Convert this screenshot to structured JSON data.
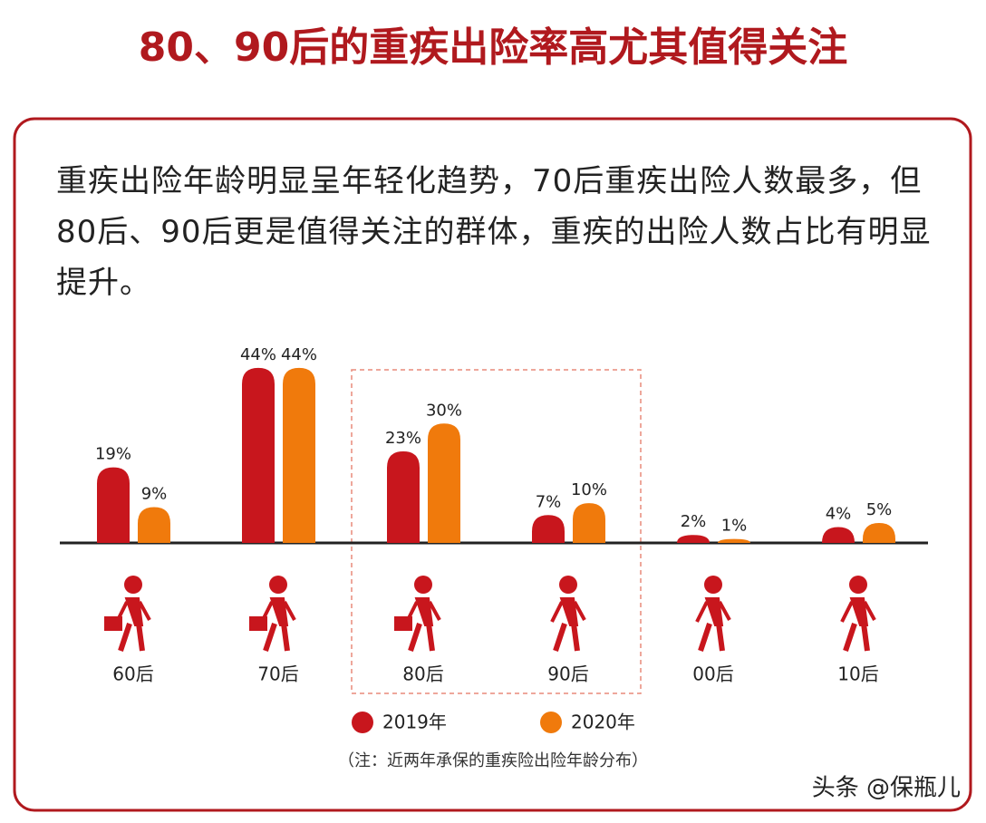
{
  "header": {
    "title": "80、90后的重疾出险率高尤其值得关注"
  },
  "description": "重疾出险年龄明显呈年轻化趋势，70后重疾出险人数最多，但80后、90后更是值得关注的群体，重疾的出险人数占比有明显提升。",
  "chart_data": {
    "type": "bar",
    "categories": [
      "60后",
      "70后",
      "80后",
      "90后",
      "00后",
      "10后"
    ],
    "series": [
      {
        "name": "2019年",
        "color": "#c8161d",
        "values": [
          19,
          44,
          23,
          7,
          2,
          4
        ],
        "value_labels": [
          "19%",
          "44%",
          "23%",
          "7%",
          "2%",
          "4%"
        ]
      },
      {
        "name": "2020年",
        "color": "#f07a0c",
        "values": [
          9,
          44,
          30,
          10,
          1,
          5
        ],
        "value_labels": [
          "9%",
          "44%",
          "30%",
          "10%",
          "1%",
          "5%"
        ]
      }
    ],
    "note": "（注：近两年承保的重疾险出险年龄分布）"
  },
  "watermark": "头条 @保瓶儿"
}
